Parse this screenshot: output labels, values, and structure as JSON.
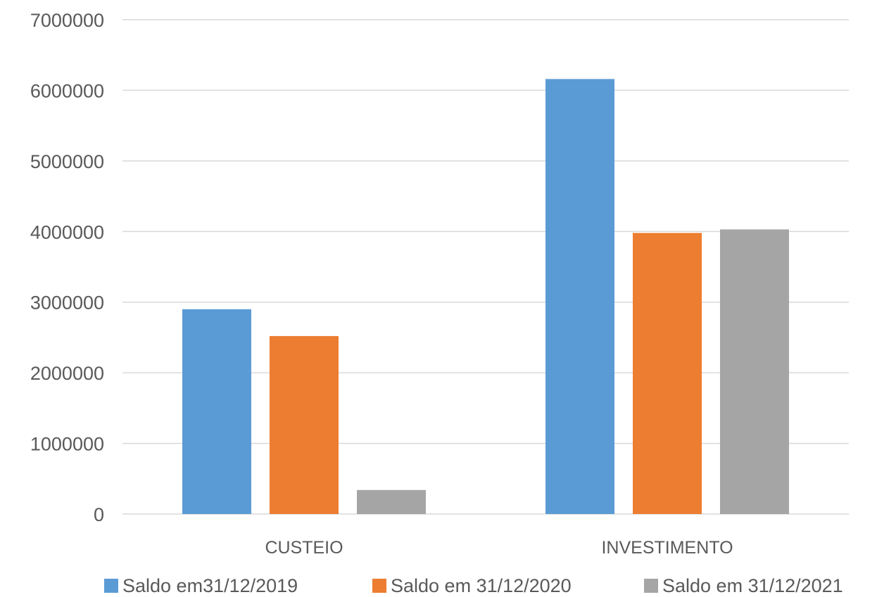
{
  "chart_data": {
    "type": "bar",
    "title": "",
    "xlabel": "",
    "ylabel": "",
    "categories": [
      "CUSTEIO",
      "INVESTIMENTO"
    ],
    "series": [
      {
        "name": "Saldo em31/12/2019",
        "color": "#5b9bd5",
        "values": [
          2900000,
          6160000
        ]
      },
      {
        "name": "Saldo em 31/12/2020",
        "color": "#ed7d31",
        "values": [
          2520000,
          3980000
        ]
      },
      {
        "name": "Saldo em 31/12/2021",
        "color": "#a5a5a5",
        "values": [
          340000,
          4030000
        ]
      }
    ],
    "ylim": [
      0,
      7000000
    ],
    "yticks": [
      "0",
      "1000000",
      "2000000",
      "3000000",
      "4000000",
      "5000000",
      "6000000",
      "7000000"
    ],
    "grid": true,
    "legend_position": "bottom"
  }
}
